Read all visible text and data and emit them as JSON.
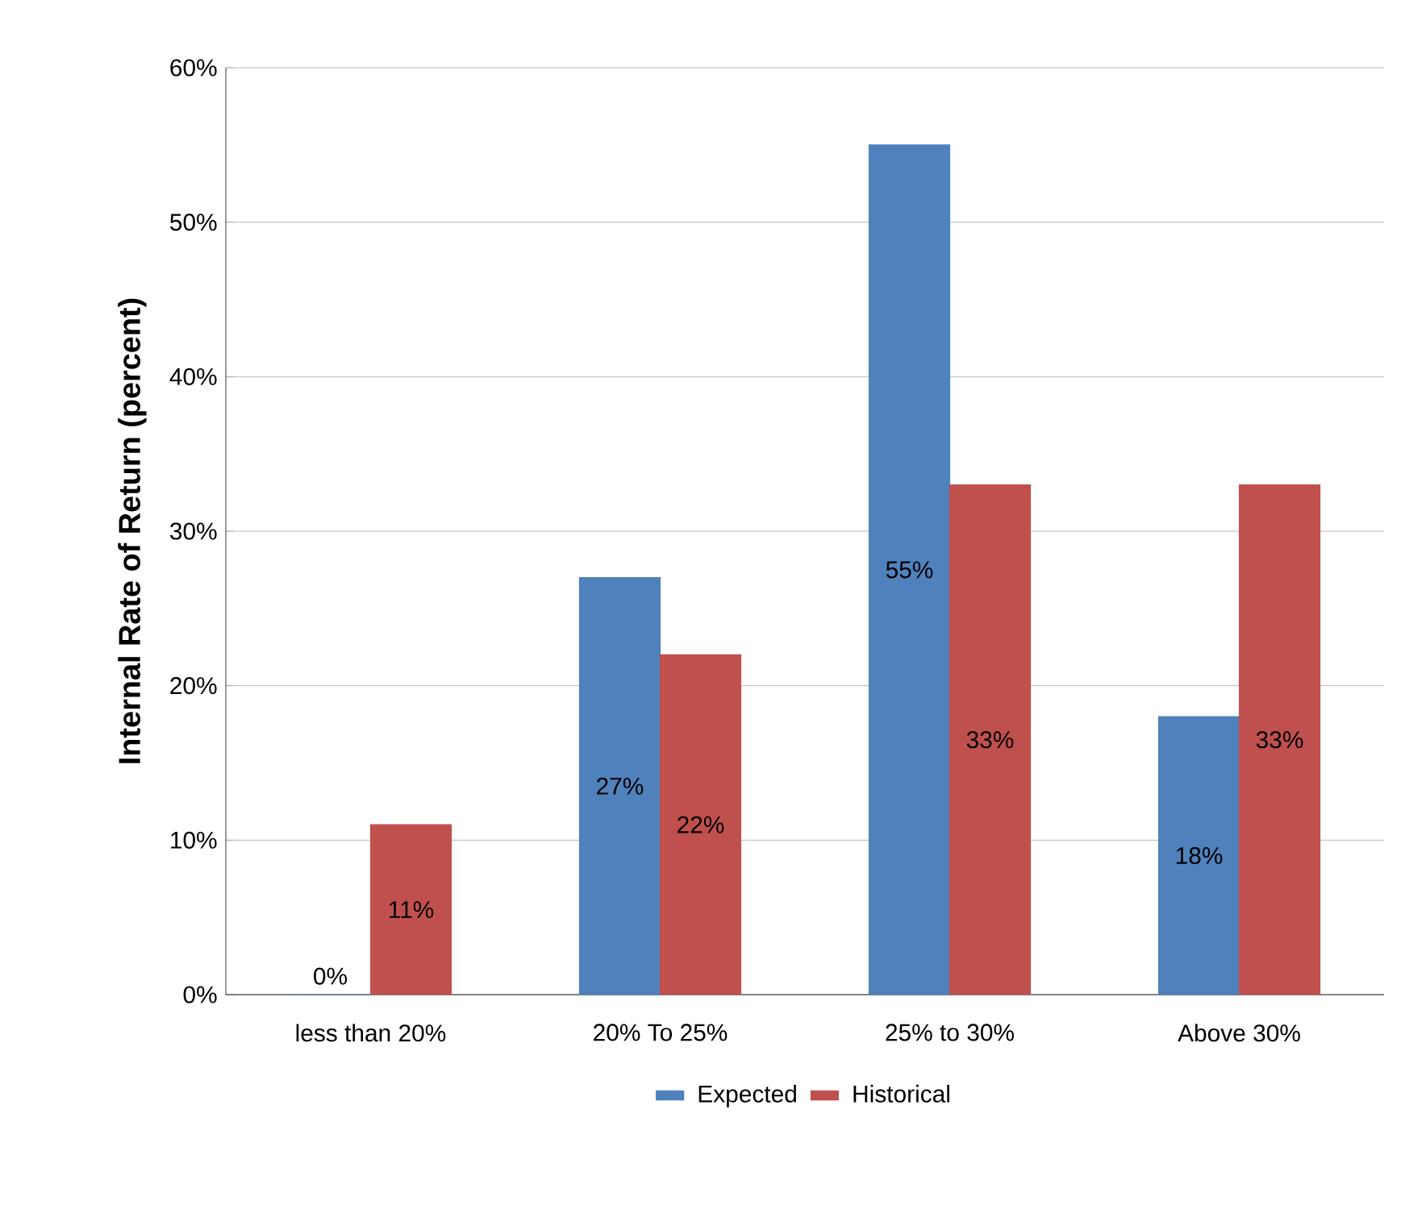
{
  "chart_data": {
    "type": "bar",
    "ylabel": "Internal Rate of Return (percent)",
    "categories": [
      "less than 20%",
      "20% To 25%",
      "25% to 30%",
      "Above 30%"
    ],
    "series": [
      {
        "name": "Expected",
        "color": "#4f81bd",
        "values": [
          0,
          27,
          55,
          18
        ],
        "value_labels": [
          "0%",
          "27%",
          "55%",
          "18%"
        ]
      },
      {
        "name": "Historical",
        "color": "#c0504d",
        "values": [
          11,
          22,
          33,
          33
        ],
        "value_labels": [
          "11%",
          "22%",
          "33%",
          "33%"
        ]
      }
    ],
    "ylim": [
      0,
      60
    ],
    "yticks": [
      {
        "value": 0,
        "label": "0%"
      },
      {
        "value": 10,
        "label": "10%"
      },
      {
        "value": 20,
        "label": "20%"
      },
      {
        "value": 30,
        "label": "30%"
      },
      {
        "value": 40,
        "label": "40%"
      },
      {
        "value": 50,
        "label": "50%"
      },
      {
        "value": 60,
        "label": "60%"
      }
    ],
    "grid": "y",
    "legend": "bottom"
  }
}
